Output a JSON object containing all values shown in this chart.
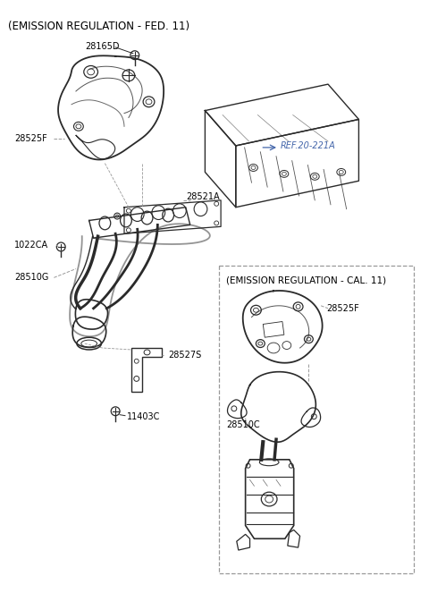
{
  "title": "(EMISSION REGULATION - FED. 11)",
  "title2": "(EMISSION REGULATION - CAL. 11)",
  "ref_label": "REF.20-221A",
  "bg_color": "#ffffff",
  "line_color": "#2a2a2a",
  "label_color": "#000000",
  "ref_color": "#4466aa",
  "dashed_color": "#999999",
  "fig_width": 4.8,
  "fig_height": 6.63,
  "dpi": 100
}
